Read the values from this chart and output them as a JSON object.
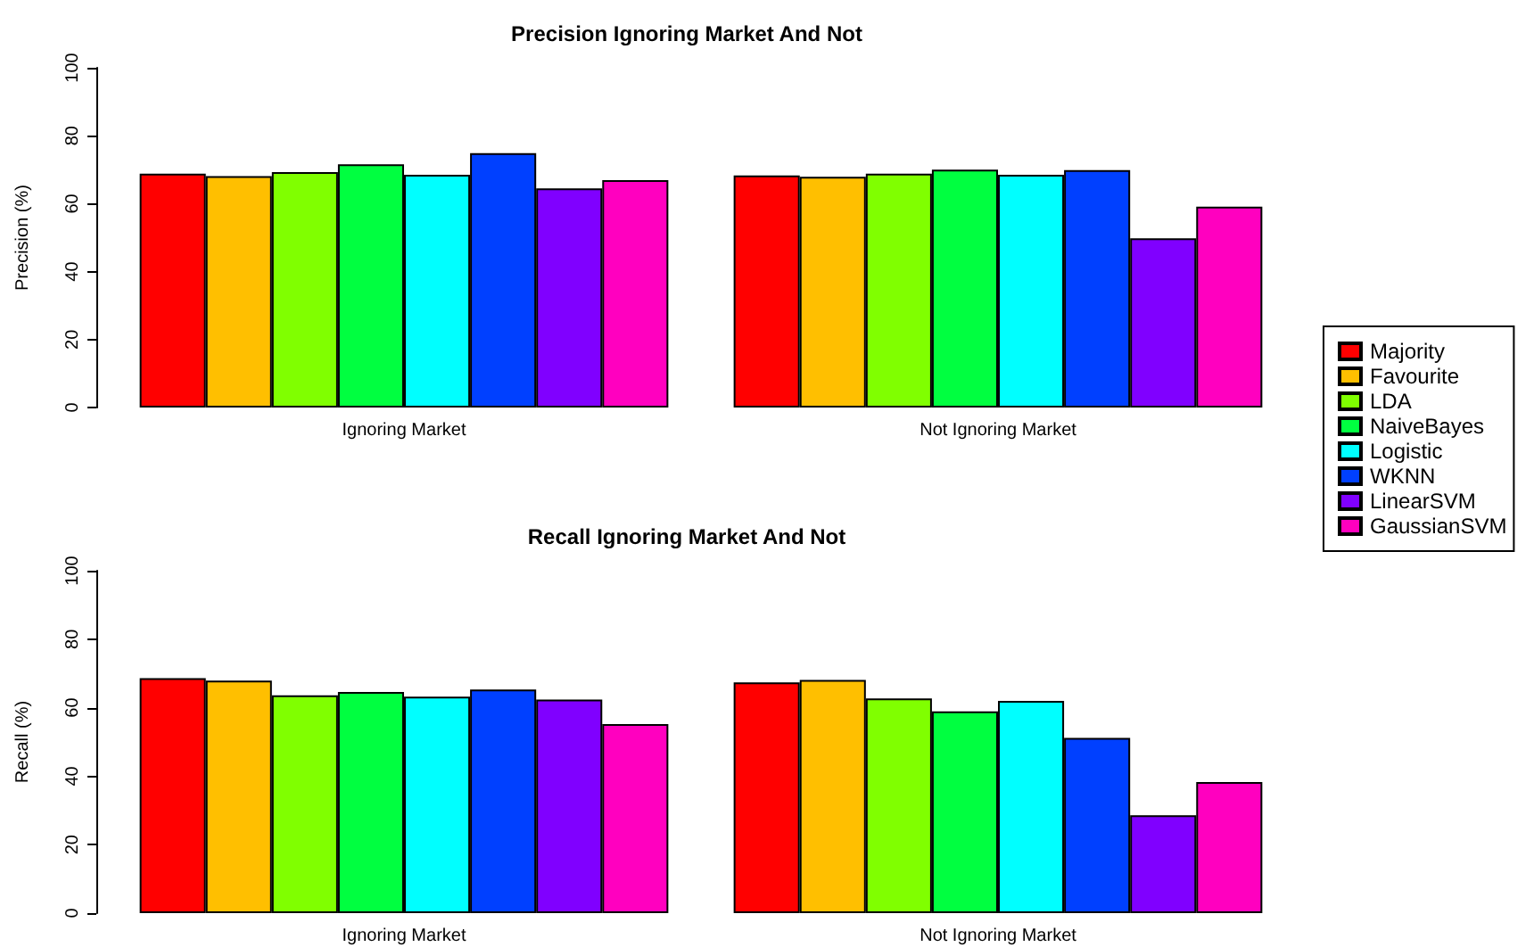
{
  "chart_data": [
    {
      "type": "bar",
      "title": "Precision Ignoring Market And Not",
      "ylabel": "Precision (%)",
      "categories": [
        "Ignoring Market",
        "Not Ignoring Market"
      ],
      "ylim": [
        0,
        100
      ],
      "yticks": [
        0,
        20,
        40,
        60,
        80,
        100
      ],
      "legend": "right",
      "series": [
        {
          "name": "Majority",
          "color": "#ff0000",
          "values": [
            68.8,
            68.3
          ]
        },
        {
          "name": "Favourite",
          "color": "#ffbf00",
          "values": [
            68.1,
            67.9
          ]
        },
        {
          "name": "LDA",
          "color": "#80ff00",
          "values": [
            69.3,
            68.8
          ]
        },
        {
          "name": "NaiveBayes",
          "color": "#00ff40",
          "values": [
            71.6,
            70.0
          ]
        },
        {
          "name": "Logistic",
          "color": "#00ffff",
          "values": [
            68.5,
            68.5
          ]
        },
        {
          "name": "WKNN",
          "color": "#0040ff",
          "values": [
            74.9,
            69.9
          ]
        },
        {
          "name": "LinearSVM",
          "color": "#8000ff",
          "values": [
            64.5,
            49.8
          ]
        },
        {
          "name": "GaussianSVM",
          "color": "#ff00bf",
          "values": [
            66.9,
            59.1
          ]
        }
      ]
    },
    {
      "type": "bar",
      "title": "Recall Ignoring Market And Not",
      "ylabel": "Recall (%)",
      "categories": [
        "Ignoring Market",
        "Not Ignoring Market"
      ],
      "ylim": [
        0,
        100
      ],
      "yticks": [
        0,
        20,
        40,
        60,
        80,
        100
      ],
      "legend": false,
      "series": [
        {
          "color": "#ff0000",
          "values": [
            68.6,
            67.4
          ]
        },
        {
          "color": "#ffbf00",
          "values": [
            67.9,
            68.1
          ]
        },
        {
          "color": "#80ff00",
          "values": [
            63.6,
            62.7
          ]
        },
        {
          "color": "#00ff40",
          "values": [
            64.6,
            58.9
          ]
        },
        {
          "color": "#00ffff",
          "values": [
            63.2,
            62.0
          ]
        },
        {
          "color": "#0040ff",
          "values": [
            65.3,
            51.2
          ]
        },
        {
          "color": "#8000ff",
          "values": [
            62.4,
            28.6
          ]
        },
        {
          "color": "#ff00bf",
          "values": [
            55.2,
            38.3
          ]
        }
      ]
    }
  ]
}
